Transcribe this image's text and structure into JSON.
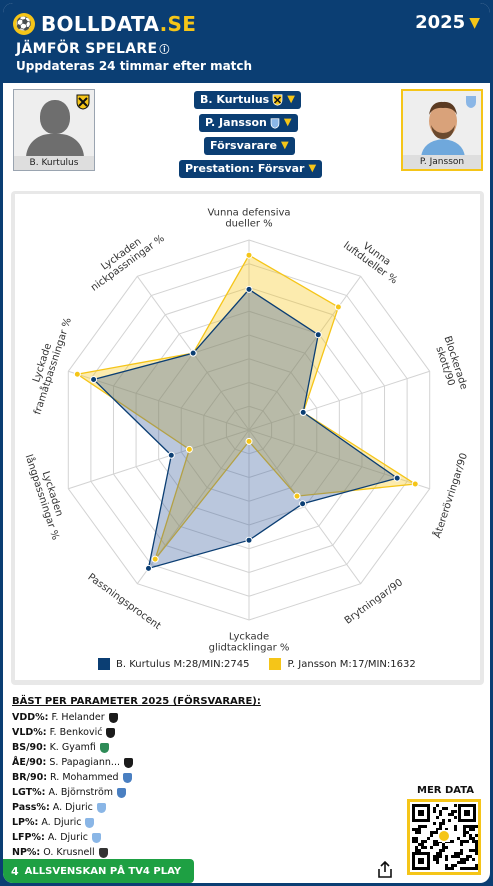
{
  "header": {
    "logo_text_a": "BOLLDATA",
    "logo_text_b": ".SE",
    "year": "2025",
    "title": "JÄMFÖR SPELARE",
    "subtitle": "Uppdateras 24 timmar efter match"
  },
  "players": {
    "left": {
      "name": "B. Kurtulus",
      "badge": "hacken-badge-icon"
    },
    "right": {
      "name": "P. Jansson",
      "badge": "malmo-badge-icon"
    }
  },
  "dropdowns": {
    "player1": "B. Kurtulus",
    "player2": "P. Jansson",
    "position": "Försvarare",
    "metric": "Prestation: Försvar"
  },
  "colors": {
    "navy": "#0b3e73",
    "gold": "#f5c518",
    "blue_series": "#3a5f9e",
    "gold_series": "#f5c518",
    "green": "#1ea043"
  },
  "chart_data": {
    "type": "radar",
    "axes": [
      [
        "Vunna defensiva",
        "dueller %"
      ],
      [
        "Vunna",
        "luftdueller %"
      ],
      [
        "Blockerade",
        "skott/90"
      ],
      [
        "Återerövringar/90"
      ],
      [
        "Brytningar/90"
      ],
      [
        "Lyckade",
        "glidtacklingar %"
      ],
      [
        "Passningsprocent"
      ],
      [
        "Lyckaden",
        "långpassningar %"
      ],
      [
        "Lyckade",
        "framåtpassningar %"
      ],
      [
        "Lyckaden",
        "nickpassningar %"
      ]
    ],
    "rmax": 100,
    "series": [
      {
        "name": "B. Kurtulus M:28/MIN:2745",
        "values": [
          74,
          62,
          30,
          82,
          48,
          58,
          90,
          43,
          86,
          50
        ]
      },
      {
        "name": "P. Jansson M:17/MIN:1632",
        "values": [
          92,
          80,
          30,
          92,
          43,
          6,
          84,
          33,
          95,
          50
        ]
      }
    ]
  },
  "best": {
    "title": "BÄST PER PARAMETER 2025 (FÖRSVARARE):",
    "rows": [
      {
        "k": "VDD%:",
        "v": "F. Helander",
        "badge": "#1b1b1b"
      },
      {
        "k": "VLD%:",
        "v": "F. Benković",
        "badge": "#1b1b1b"
      },
      {
        "k": "BS/90:",
        "v": "K. Gyamfi",
        "badge": "#2e8b57"
      },
      {
        "k": "ÅE/90:",
        "v": "S. Papagiann...",
        "badge": "#1b1b1b"
      },
      {
        "k": "BR/90:",
        "v": "R. Mohammed",
        "badge": "#4a7fc1"
      },
      {
        "k": "LGT%:",
        "v": "A. Björnström",
        "badge": "#4a7fc1"
      },
      {
        "k": "Pass%:",
        "v": "A. Djuric",
        "badge": "#8ab6e6"
      },
      {
        "k": "LP%:",
        "v": "A. Djuric",
        "badge": "#8ab6e6"
      },
      {
        "k": "LFP%:",
        "v": "A. Djuric",
        "badge": "#8ab6e6"
      },
      {
        "k": "NP%:",
        "v": "O. Krusnell",
        "badge": "#333"
      }
    ]
  },
  "more": {
    "label": "MER DATA"
  },
  "footer": {
    "number": "4",
    "label": "ALLSVENSKAN PÅ TV4 PLAY"
  }
}
